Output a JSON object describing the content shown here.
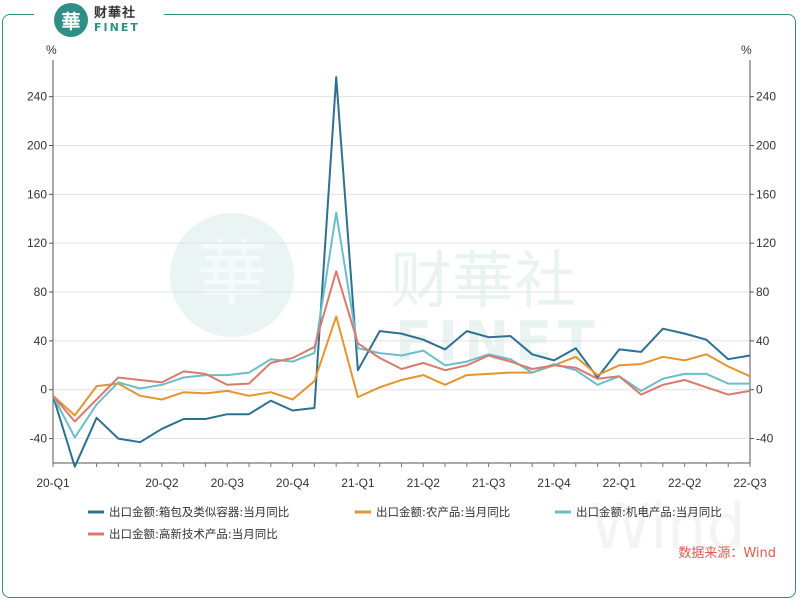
{
  "branding": {
    "logo_char": "華",
    "name_cn": "财華社",
    "name_en": "FINET",
    "source": "数据来源：Wind"
  },
  "chart_data": {
    "type": "line",
    "y_unit_left": "%",
    "y_unit_right": "%",
    "ylim": [
      -60,
      270
    ],
    "yticks": [
      -40,
      0,
      40,
      80,
      120,
      160,
      200,
      240
    ],
    "x_count": 33,
    "x_ticks": [
      {
        "label": "20-Q1",
        "index": 0
      },
      {
        "label": "20-Q2",
        "index": 5
      },
      {
        "label": "20-Q3",
        "index": 8
      },
      {
        "label": "20-Q4",
        "index": 11
      },
      {
        "label": "21-Q1",
        "index": 14
      },
      {
        "label": "21-Q2",
        "index": 17
      },
      {
        "label": "21-Q3",
        "index": 20
      },
      {
        "label": "21-Q4",
        "index": 23
      },
      {
        "label": "22-Q1",
        "index": 26
      },
      {
        "label": "22-Q2",
        "index": 29
      },
      {
        "label": "22-Q3",
        "index": 32
      }
    ],
    "series": [
      {
        "name": "出口金额:箱包及类似容器:当月同比",
        "color": "#2e7090",
        "values": [
          -5,
          -63,
          -23,
          -40,
          -43,
          -32,
          -24,
          -24,
          -20,
          -20,
          -9,
          -17,
          -15,
          256,
          16,
          48,
          46,
          41,
          33,
          48,
          43,
          44,
          29,
          24,
          34,
          10,
          33,
          31,
          50,
          46,
          41,
          25,
          28
        ]
      },
      {
        "name": "出口金额:农产品:当月同比",
        "color": "#e3952f",
        "values": [
          -5,
          -21,
          3,
          5,
          -5,
          -8,
          -2,
          -3,
          -1,
          -5,
          -2,
          -8,
          7,
          60,
          -6,
          2,
          8,
          12,
          4,
          12,
          13,
          14,
          14,
          20,
          27,
          12,
          20,
          21,
          27,
          24,
          29,
          19,
          11
        ]
      },
      {
        "name": "出口金额:机电产品:当月同比",
        "color": "#6cbdc9",
        "values": [
          -5,
          -39,
          -12,
          6,
          1,
          4,
          10,
          12,
          12,
          14,
          25,
          23,
          30,
          145,
          34,
          30,
          28,
          32,
          20,
          23,
          29,
          25,
          14,
          21,
          16,
          4,
          11,
          -1,
          9,
          13,
          13,
          5,
          5
        ]
      },
      {
        "name": "出口金额:高新技术产品:当月同比",
        "color": "#d97a6e",
        "values": [
          -5,
          -26,
          -8,
          10,
          8,
          6,
          15,
          13,
          4,
          5,
          22,
          26,
          35,
          97,
          38,
          26,
          17,
          22,
          16,
          20,
          28,
          23,
          17,
          20,
          18,
          9,
          11,
          -4,
          4,
          8,
          2,
          -4,
          -1
        ]
      }
    ]
  }
}
